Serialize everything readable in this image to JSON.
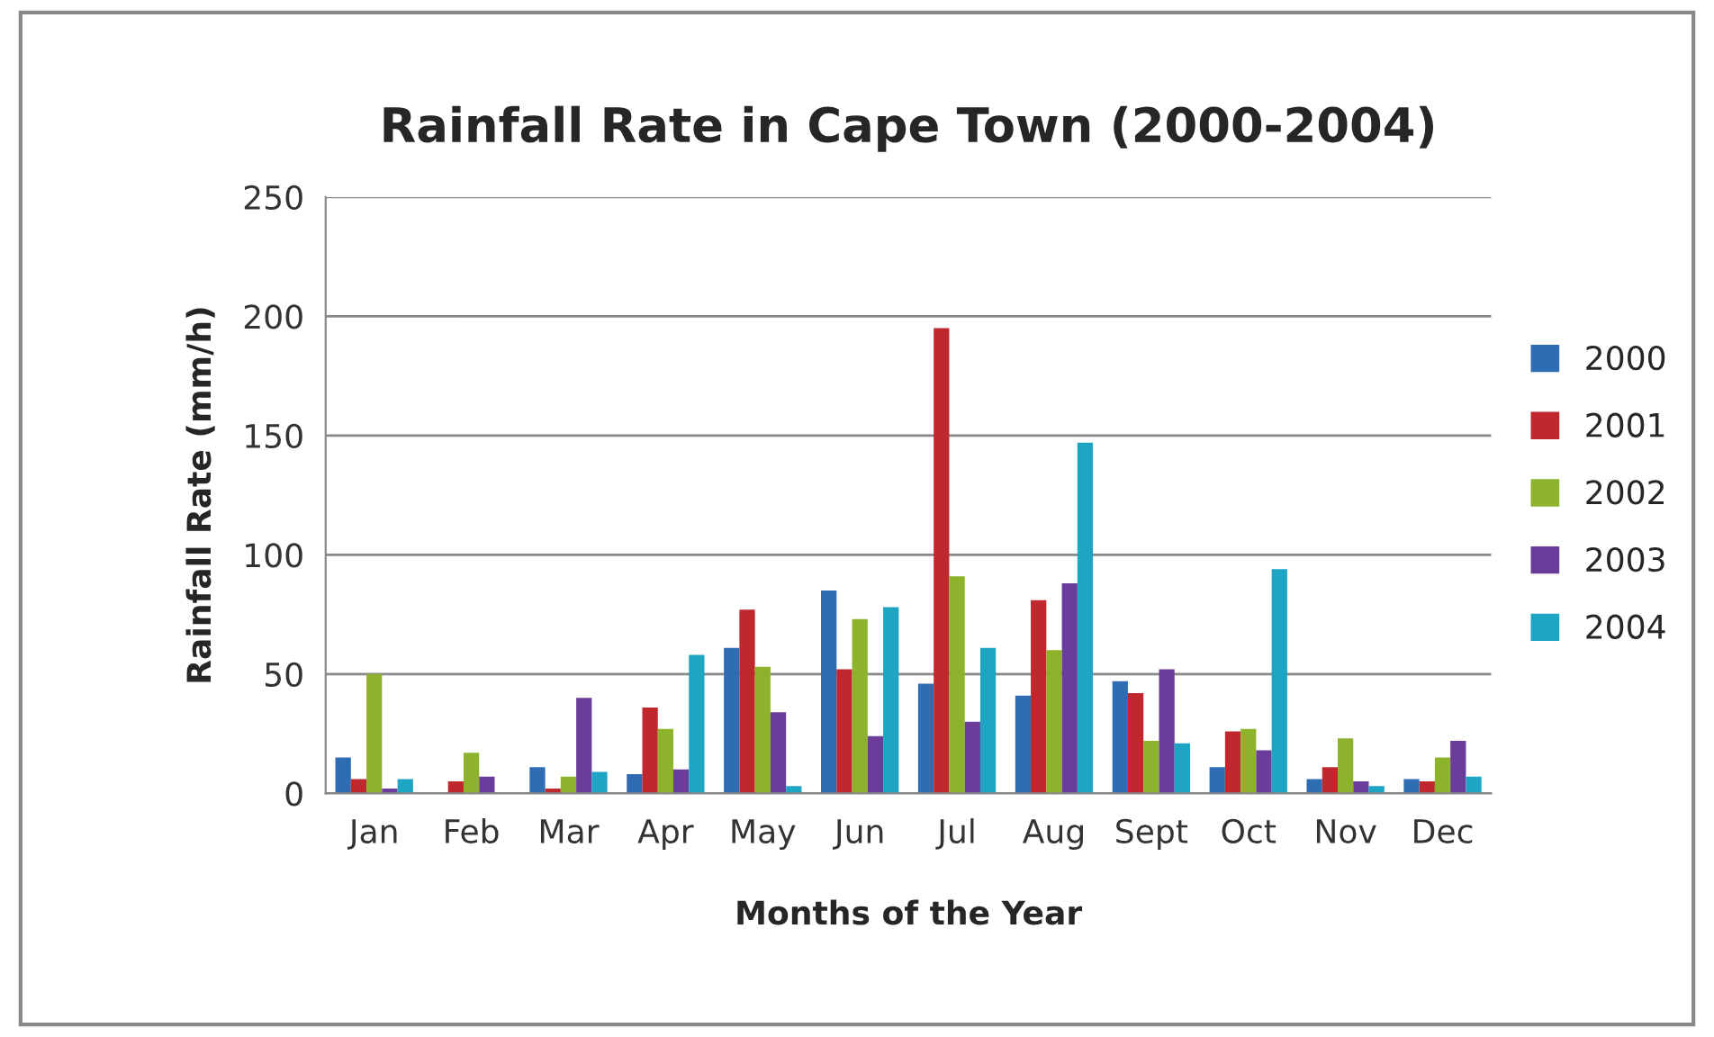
{
  "chart_data": {
    "type": "bar",
    "title": "Rainfall Rate in Cape Town (2000-2004)",
    "xlabel": "Months of the Year",
    "ylabel": "Rainfall Rate (mm/h)",
    "categories": [
      "Jan",
      "Feb",
      "Mar",
      "Apr",
      "May",
      "Jun",
      "Jul",
      "Aug",
      "Sept",
      "Oct",
      "Nov",
      "Dec"
    ],
    "series": [
      {
        "name": "2000",
        "color": "#2e6db4",
        "values": [
          15,
          0,
          11,
          8,
          61,
          85,
          46,
          41,
          47,
          11,
          6,
          6
        ]
      },
      {
        "name": "2001",
        "color": "#c0282e",
        "values": [
          6,
          5,
          2,
          36,
          77,
          52,
          195,
          81,
          42,
          26,
          11,
          5
        ]
      },
      {
        "name": "2002",
        "color": "#8db22c",
        "values": [
          50,
          17,
          7,
          27,
          53,
          73,
          91,
          60,
          22,
          27,
          23,
          15
        ]
      },
      {
        "name": "2003",
        "color": "#6a3d9a",
        "values": [
          2,
          7,
          40,
          10,
          34,
          24,
          30,
          88,
          52,
          18,
          5,
          22
        ]
      },
      {
        "name": "2004",
        "color": "#1fa5c4",
        "values": [
          6,
          0,
          9,
          58,
          3,
          78,
          61,
          147,
          21,
          94,
          3,
          7
        ]
      }
    ],
    "ylim": [
      0,
      250
    ],
    "yticks": [
      0,
      50,
      100,
      150,
      200,
      250
    ],
    "grid": "y",
    "legend": "right"
  }
}
